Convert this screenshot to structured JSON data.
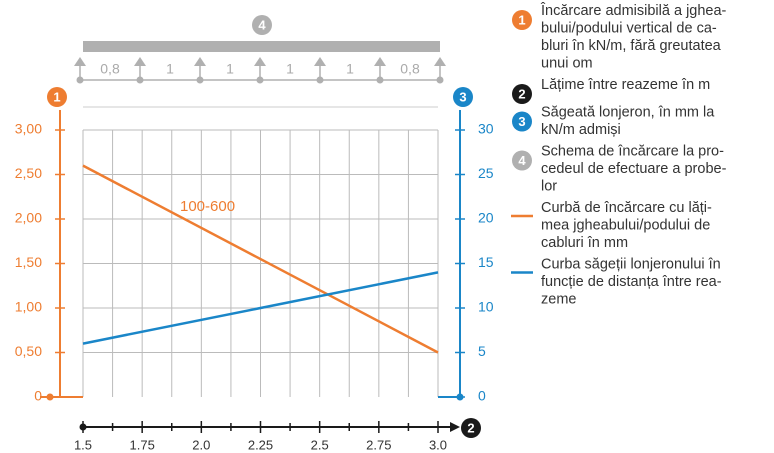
{
  "chart_data": {
    "type": "line",
    "x": [
      1.5,
      3.0
    ],
    "xlim": [
      1.5,
      3.0
    ],
    "xticks": [
      1.5,
      1.75,
      {
        "value": 2,
        "label": "2.0"
      },
      2.25,
      2.5,
      2.75,
      {
        "value": 3,
        "label": "3.0"
      }
    ],
    "xminorticks": [
      1.625,
      1.875,
      2.125,
      2.375,
      2.625,
      2.875
    ],
    "ylim": [
      0,
      3
    ],
    "yticks": [
      0,
      {
        "value": 0.5,
        "label": "0,50"
      },
      {
        "value": 1,
        "label": "1,00"
      },
      {
        "value": 1.5,
        "label": "1,50"
      },
      {
        "value": 2,
        "label": "2,00"
      },
      {
        "value": 2.5,
        "label": "2,50"
      },
      {
        "value": 3,
        "label": "3,00"
      }
    ],
    "y2lim": [
      0,
      30
    ],
    "y2ticks": [
      0,
      5,
      10,
      15,
      20,
      25,
      30
    ],
    "grid": true,
    "series": [
      {
        "name": "100-600",
        "color": "#ee7d31",
        "values": [
          2.6,
          0.5
        ]
      },
      {
        "color": "#1a86c8",
        "axis": "y2",
        "values": [
          6,
          14
        ]
      }
    ],
    "axis_markers": {
      "y": "1",
      "y2": "3",
      "x": "2"
    },
    "schematic": {
      "marker": "4",
      "spans": [
        "0,8",
        "1",
        "1",
        "1",
        "1",
        "0,8"
      ]
    },
    "legend": [
      {
        "marker": "1",
        "color": "#ee7d31",
        "lines": [
          "Încărcare admisibilă a jghea-",
          "bului/podului vertical de ca-",
          "bluri în kN/m, fără greutatea",
          "unui om"
        ]
      },
      {
        "marker": "2",
        "color": "#1a1a1a",
        "lines": [
          "Lățime între reazeme în m"
        ]
      },
      {
        "marker": "3",
        "color": "#1a86c8",
        "lines": [
          "Săgeată lonjeron, în mm la",
          "kN/m admiși"
        ]
      },
      {
        "marker": "4",
        "color": "#b0b0b0",
        "lines": [
          "Schema de încărcare la pro-",
          "cedeul de efectuare a probe-",
          "lor"
        ]
      },
      {
        "color": "#ee7d31",
        "lines": [
          "Curbă de încărcare cu lăți-",
          "mea jgheabului/podului de",
          "cabluri în mm"
        ]
      },
      {
        "color": "#1a86c8",
        "lines": [
          "Curba săgeții lonjeronului în",
          "funcție de distanța între rea-",
          "zeme"
        ]
      }
    ]
  }
}
